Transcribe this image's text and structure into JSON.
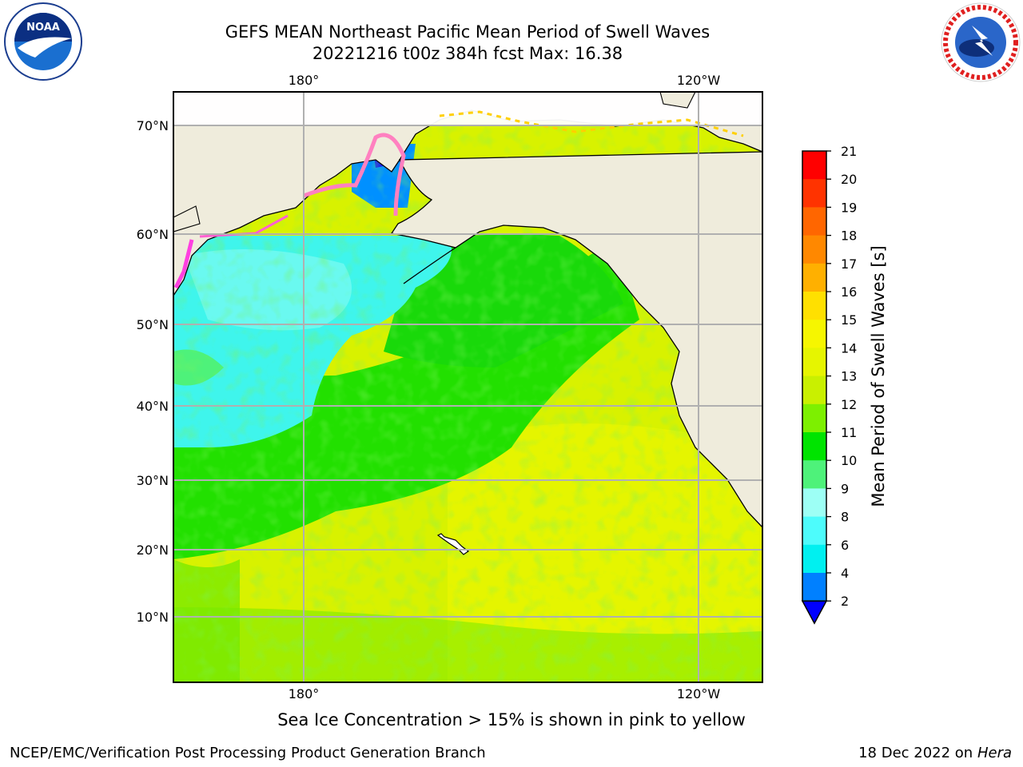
{
  "header": {
    "title_line1": "GEFS MEAN Northeast Pacific Mean Period of Swell Waves",
    "title_line2": "20221216 t00z 384h fcst   Max: 16.38"
  },
  "map": {
    "top_lon_labels": [
      "180°",
      "120°W"
    ],
    "bottom_lon_labels": [
      "180°",
      "120°W"
    ],
    "lat_labels": [
      "70°N",
      "60°N",
      "50°N",
      "40°N",
      "30°N",
      "20°N",
      "10°N"
    ],
    "lon_range": [
      160,
      250
    ],
    "lat_range": [
      2,
      74
    ],
    "land_color": "#efecdc",
    "gridline_color": "#b0b0b0"
  },
  "colorbar": {
    "label": "Mean Period of Swell Waves [s]",
    "ticks": [
      "21",
      "20",
      "19",
      "18",
      "17",
      "16",
      "15",
      "14",
      "13",
      "12",
      "11",
      "10",
      "9",
      "8",
      "6",
      "4",
      "2"
    ],
    "colors": [
      "#ff0000",
      "#ff3300",
      "#ff6600",
      "#ff8800",
      "#ffb000",
      "#ffe000",
      "#f6f600",
      "#e6f500",
      "#c9f000",
      "#7df000",
      "#00e400",
      "#4ef27a",
      "#9dfff5",
      "#4dfcfc",
      "#00f0f0",
      "#0080ff",
      "#0000ff"
    ]
  },
  "note": "Sea Ice Concentration > 15% is shown in pink to yellow",
  "footer": {
    "left": "NCEP/EMC/Verification Post Processing Product Generation Branch",
    "right_date": "18 Dec 2022 on",
    "right_host": "Hera"
  }
}
